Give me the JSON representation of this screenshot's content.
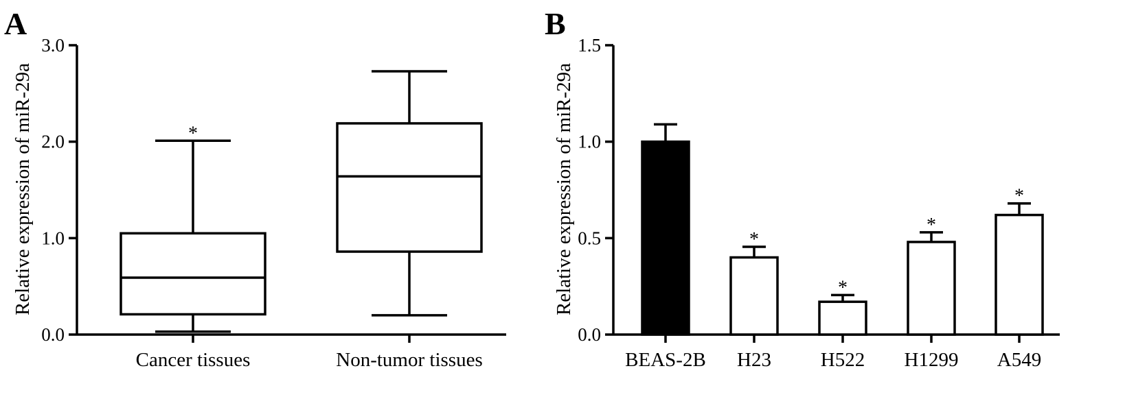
{
  "chart_data": [
    {
      "panel": "A",
      "type": "box",
      "ylabel": "Relative expression of miR-29a",
      "ylim": [
        0,
        3.0
      ],
      "yticks": [
        "0.0",
        "1.0",
        "2.0",
        "3.0"
      ],
      "categories": [
        "Cancer tissues",
        "Non-tumor tissues"
      ],
      "boxes": [
        {
          "min": 0.03,
          "q1": 0.21,
          "median": 0.59,
          "q3": 1.05,
          "max": 2.01,
          "marker": "*"
        },
        {
          "min": 0.2,
          "q1": 0.86,
          "median": 1.64,
          "q3": 2.19,
          "max": 2.73,
          "marker": ""
        }
      ]
    },
    {
      "panel": "B",
      "type": "bar",
      "ylabel": "Relative expression of miR-29a",
      "ylim": [
        0,
        1.5
      ],
      "yticks": [
        "0.0",
        "0.5",
        "1.0",
        "1.5"
      ],
      "categories": [
        "BEAS-2B",
        "H23",
        "H522",
        "H1299",
        "A549"
      ],
      "values": [
        1.0,
        0.4,
        0.17,
        0.48,
        0.62
      ],
      "errors": [
        0.09,
        0.055,
        0.035,
        0.05,
        0.06
      ],
      "markers": [
        "",
        "*",
        "*",
        "*",
        "*"
      ],
      "colors": [
        "#000000",
        "#ffffff",
        "#ffffff",
        "#ffffff",
        "#ffffff"
      ]
    }
  ]
}
